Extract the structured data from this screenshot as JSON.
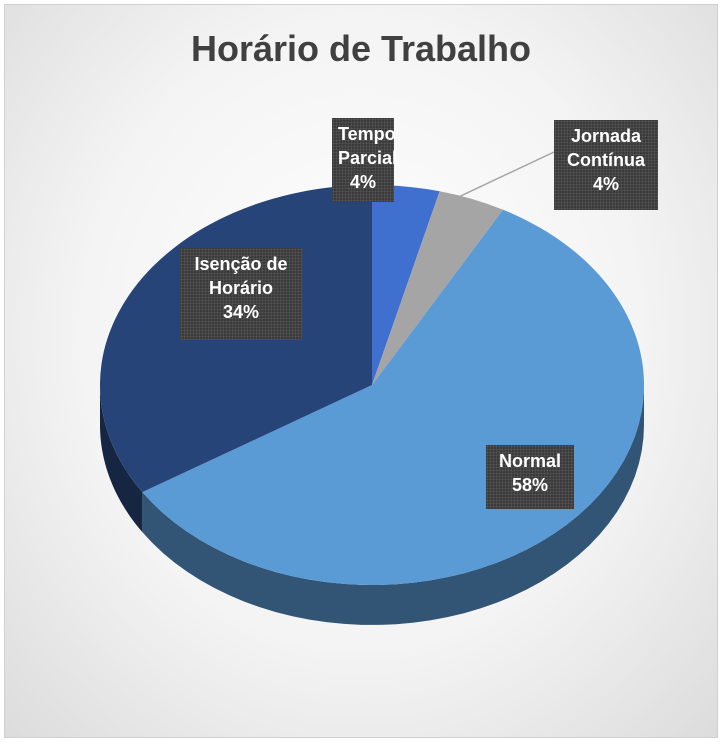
{
  "chart_data": {
    "type": "pie",
    "title": "Horário de Trabalho",
    "categories": [
      "Tempo Parcial",
      "Jornada Contínua",
      "Normal",
      "Isenção de Horário"
    ],
    "values": [
      4,
      4,
      58,
      34
    ],
    "value_labels": [
      "4%",
      "4%",
      "58%",
      "34%"
    ],
    "colors": [
      "#3f6fcf",
      "#a5a5a5",
      "#5b9bd5",
      "#264478"
    ]
  }
}
